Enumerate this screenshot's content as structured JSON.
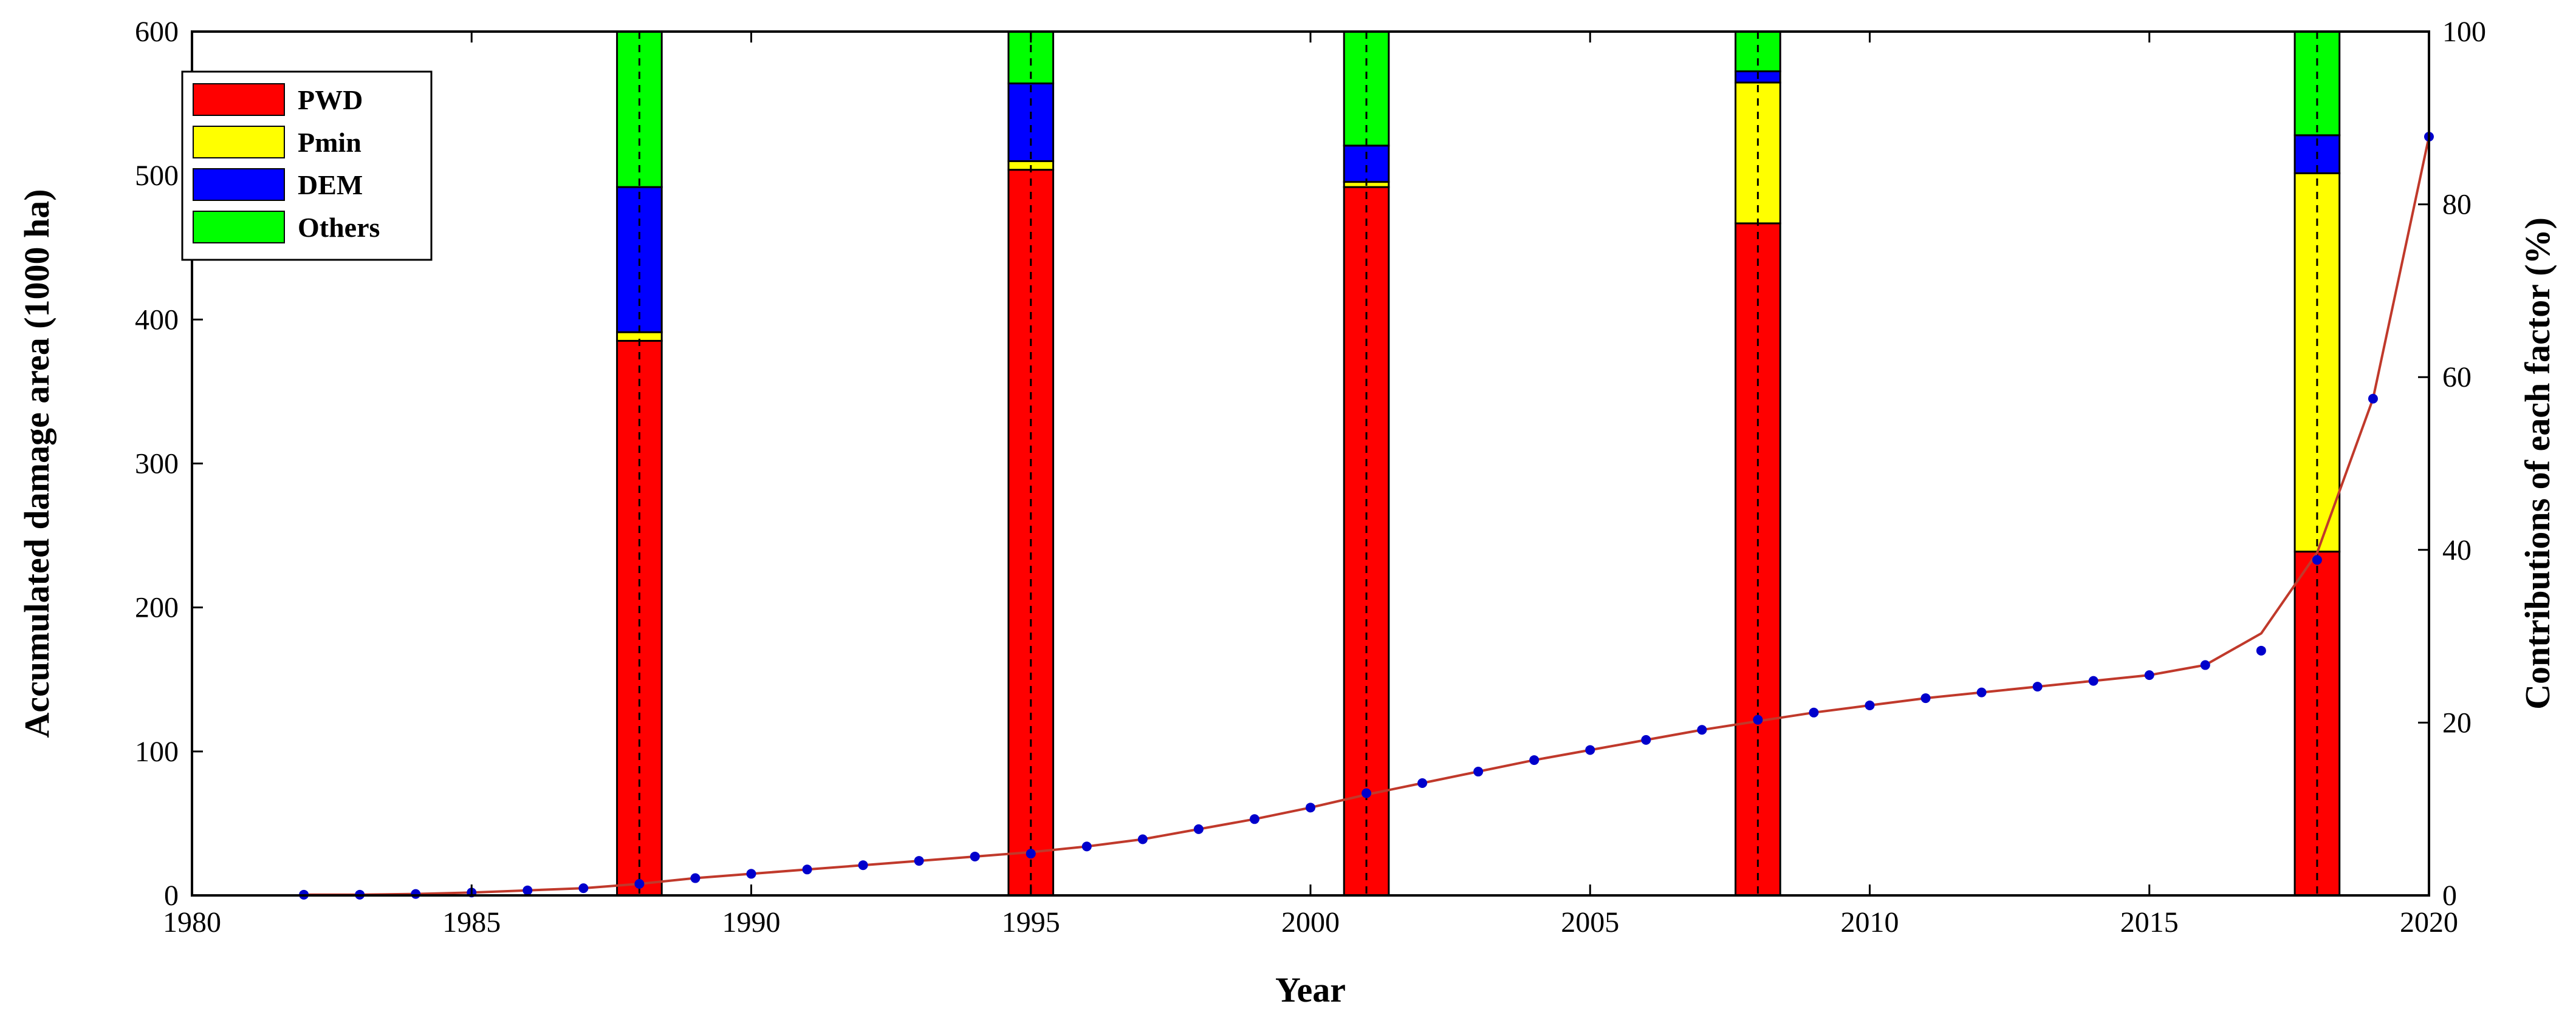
{
  "chart_data": {
    "type": "bar",
    "xlabel": "Year",
    "ylabel": "Accumulated damage area (1000 ha)",
    "y2label": "Contributions of each factor (%)",
    "xlim": [
      1980,
      2020
    ],
    "ylim": [
      0,
      600
    ],
    "y2lim": [
      0,
      100
    ],
    "xticks": [
      1980,
      1985,
      1990,
      1995,
      2000,
      2005,
      2010,
      2015,
      2020
    ],
    "yticks": [
      0,
      100,
      200,
      300,
      400,
      500,
      600
    ],
    "y2ticks": [
      0,
      20,
      40,
      60,
      80,
      100
    ],
    "legend_position": "top-left",
    "grid": false,
    "bar_width_years": 0.8,
    "bar_categories": [
      1988,
      1995,
      2001,
      2008,
      2018
    ],
    "bar_series": [
      {
        "name": "PWD",
        "color": "#ff0000",
        "values": [
          64.2,
          84.0,
          82.0,
          77.8,
          39.8
        ]
      },
      {
        "name": "Pmin",
        "color": "#ffff00",
        "values": [
          1.0,
          1.0,
          0.6,
          16.3,
          43.8
        ]
      },
      {
        "name": "DEM",
        "color": "#0000ff",
        "values": [
          16.8,
          9.0,
          4.2,
          1.3,
          4.4
        ]
      },
      {
        "name": "Others",
        "color": "#00ff00",
        "values": [
          18.0,
          6.0,
          13.2,
          4.6,
          12.0
        ]
      }
    ],
    "line_series": {
      "color": "#c0392b",
      "x": [
        1982,
        1983,
        1984,
        1985,
        1986,
        1987,
        1988,
        1989,
        1990,
        1991,
        1992,
        1993,
        1994,
        1995,
        1996,
        1997,
        1998,
        1999,
        2000,
        2001,
        2002,
        2003,
        2004,
        2005,
        2006,
        2007,
        2008,
        2009,
        2010,
        2011,
        2012,
        2013,
        2014,
        2015,
        2016,
        2017,
        2018,
        2019,
        2020
      ],
      "y": [
        0.5,
        0.5,
        1,
        2,
        3.5,
        5,
        8,
        12,
        15,
        18,
        21,
        24,
        27,
        30,
        34,
        39,
        46,
        53,
        61,
        70,
        78,
        86,
        94,
        101,
        108,
        115,
        121,
        127,
        132,
        137,
        141,
        145,
        149,
        153,
        160,
        182,
        238,
        345,
        527
      ]
    },
    "points": {
      "color": "#0000cc",
      "x": [
        1982,
        1983,
        1984,
        1985,
        1986,
        1987,
        1988,
        1989,
        1990,
        1991,
        1992,
        1993,
        1994,
        1995,
        1996,
        1997,
        1998,
        1999,
        2000,
        2001,
        2002,
        2003,
        2004,
        2005,
        2006,
        2007,
        2008,
        2009,
        2010,
        2011,
        2012,
        2013,
        2014,
        2015,
        2016,
        2017,
        2018,
        2019,
        2020
      ],
      "y": [
        0.5,
        0.5,
        1,
        2,
        3.5,
        5,
        8,
        12,
        15,
        18,
        21,
        24,
        27,
        29,
        34,
        39,
        46,
        53,
        61,
        71,
        78,
        86,
        94,
        101,
        108,
        115,
        122,
        127,
        132,
        137,
        141,
        145,
        149,
        153,
        160,
        170,
        233,
        345,
        527
      ]
    },
    "vlines": [
      1988,
      1995,
      2001,
      2008,
      2018
    ]
  }
}
